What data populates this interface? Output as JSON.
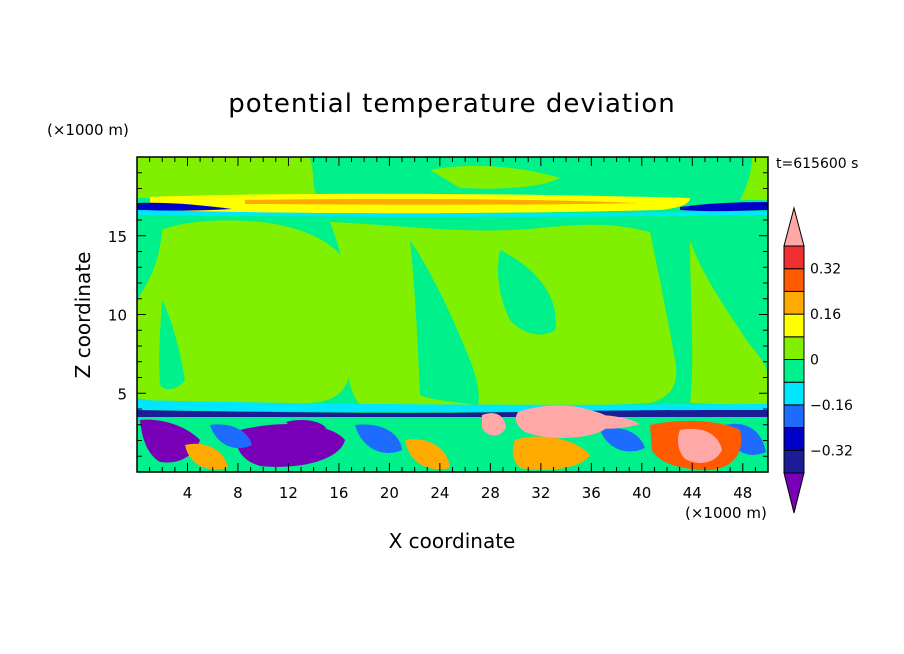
{
  "chart_data": {
    "type": "heatmap",
    "title": "potential temperature deviation",
    "time_label": "t=615600 s",
    "xlabel": "X coordinate",
    "ylabel": "Z coordinate",
    "x_unit": "(×1000 m)",
    "y_unit": "(×1000 m)",
    "xlim": [
      0,
      50
    ],
    "ylim": [
      0,
      20
    ],
    "xticks": [
      4,
      8,
      12,
      16,
      20,
      24,
      28,
      32,
      36,
      40,
      44,
      48
    ],
    "yticks": [
      5,
      10,
      15
    ],
    "colorbar": {
      "levels": [
        -0.48,
        -0.4,
        -0.32,
        -0.24,
        -0.16,
        -0.08,
        0,
        0.08,
        0.16,
        0.24,
        0.32,
        0.4,
        0.48
      ],
      "colors": [
        "#7a00b8",
        "#1c1c96",
        "#0000c8",
        "#1e6cff",
        "#00e6ff",
        "#00f08c",
        "#80f000",
        "#ffff00",
        "#ffaa00",
        "#ff5a00",
        "#f03030",
        "#ffa8a8"
      ],
      "labels": [
        "0.32",
        "0.16",
        "0",
        "−0.16",
        "−0.32"
      ],
      "label_values": [
        0.32,
        0.16,
        0,
        -0.16,
        -0.32
      ],
      "extend": "both"
    },
    "colors": {
      "neg_extreme": "#7a00b8",
      "navy": "#1c1c96",
      "blue": "#0000c8",
      "mid_blue": "#1e6cff",
      "cyan": "#00e6ff",
      "spring_green": "#00f08c",
      "green": "#80f000",
      "yellow": "#ffff00",
      "orange": "#ffaa00",
      "orange_red": "#ff5a00",
      "red": "#f03030",
      "pos_extreme": "#ffa8a8"
    }
  }
}
